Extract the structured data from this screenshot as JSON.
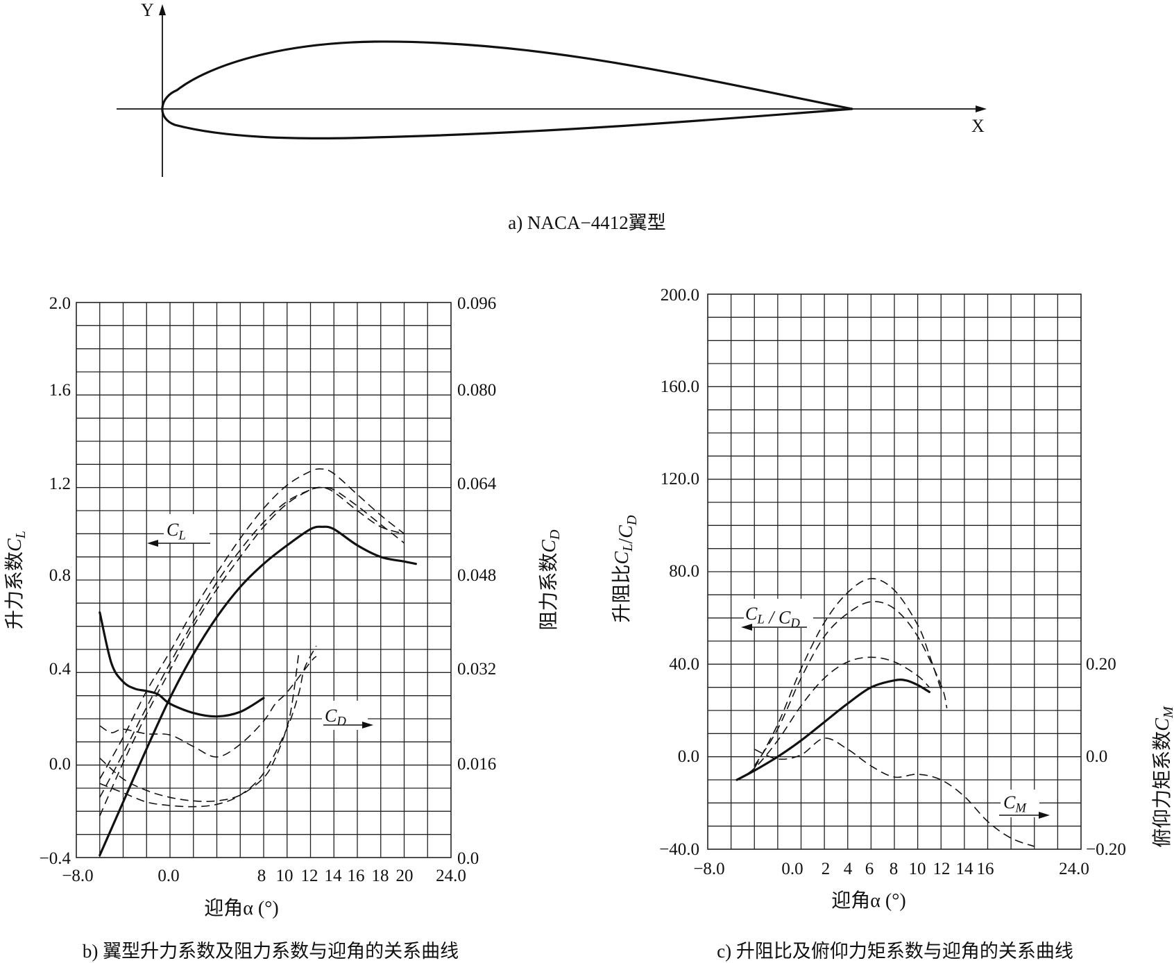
{
  "airfoil_panel": {
    "y_axis_label": "Y",
    "x_axis_label": "X",
    "caption": "a) NACA−4412翼型"
  },
  "chart_data": [
    {
      "type": "line",
      "caption": "b) 翼型升力系数及阻力系数与迎角的关系曲线",
      "xlabel": "迎角α (°)",
      "ylabel_left": "升力系数C_L",
      "ylabel_right": "阻力系数C_D",
      "xlim": [
        -8,
        24
      ],
      "ylim_left": [
        -0.4,
        2.0
      ],
      "ylim_right": [
        0.0,
        0.096
      ],
      "x_ticks": [
        "−8.0",
        "0.0",
        "8",
        "10",
        "12",
        "14",
        "16",
        "18",
        "20",
        "24.0"
      ],
      "y_ticks_left": [
        "2.0",
        "1.6",
        "1.2",
        "0.8",
        "0.4",
        "0.0",
        "−0.4"
      ],
      "y_ticks_right": [
        "0.096",
        "0.080",
        "0.064",
        "0.048",
        "0.032",
        "0.016",
        "0.0"
      ],
      "legend_labels": {
        "cl": "C_L",
        "cd": "C_D"
      },
      "grid": true,
      "series": [
        {
          "axis": "left",
          "style": "solid",
          "points": [
            [
              -6,
              -0.39
            ],
            [
              -4,
              -0.16
            ],
            [
              -2,
              0.07
            ],
            [
              0,
              0.29
            ],
            [
              2,
              0.48
            ],
            [
              4,
              0.64
            ],
            [
              6,
              0.77
            ],
            [
              8,
              0.87
            ],
            [
              10,
              0.95
            ],
            [
              12,
              1.02
            ],
            [
              13,
              1.03
            ],
            [
              14,
              1.02
            ],
            [
              16,
              0.95
            ],
            [
              18,
              0.9
            ],
            [
              20,
              0.88
            ],
            [
              21,
              0.87
            ]
          ]
        },
        {
          "axis": "left",
          "style": "dashed",
          "points": [
            [
              -6,
              -0.22
            ],
            [
              -4,
              0.01
            ],
            [
              -2,
              0.22
            ],
            [
              0,
              0.41
            ],
            [
              2,
              0.6
            ],
            [
              4,
              0.76
            ],
            [
              6,
              0.9
            ],
            [
              8,
              1.03
            ],
            [
              10,
              1.13
            ],
            [
              12,
              1.19
            ],
            [
              13,
              1.2
            ],
            [
              14,
              1.18
            ],
            [
              16,
              1.1
            ],
            [
              18,
              1.03
            ],
            [
              20,
              1.0
            ]
          ]
        },
        {
          "axis": "left",
          "style": "dashed",
          "points": [
            [
              -6,
              -0.14
            ],
            [
              -4,
              0.05
            ],
            [
              -2,
              0.25
            ],
            [
              0,
              0.44
            ],
            [
              2,
              0.62
            ],
            [
              4,
              0.79
            ],
            [
              6,
              0.93
            ],
            [
              8,
              1.05
            ],
            [
              10,
              1.14
            ],
            [
              12,
              1.19
            ],
            [
              13,
              1.2
            ],
            [
              14,
              1.19
            ],
            [
              16,
              1.12
            ],
            [
              18,
              1.04
            ],
            [
              20,
              0.96
            ]
          ]
        },
        {
          "axis": "left",
          "style": "dashed",
          "points": [
            [
              -6,
              -0.06
            ],
            [
              -4,
              0.12
            ],
            [
              -2,
              0.32
            ],
            [
              0,
              0.49
            ],
            [
              2,
              0.67
            ],
            [
              4,
              0.83
            ],
            [
              6,
              0.98
            ],
            [
              8,
              1.11
            ],
            [
              10,
              1.21
            ],
            [
              12,
              1.27
            ],
            [
              13,
              1.28
            ],
            [
              14,
              1.26
            ],
            [
              16,
              1.17
            ],
            [
              18,
              1.08
            ],
            [
              20,
              1.0
            ]
          ]
        },
        {
          "axis": "right",
          "style": "solid",
          "points": [
            [
              -6,
              0.0424
            ],
            [
              -5,
              0.0336
            ],
            [
              -4,
              0.0304
            ],
            [
              -3,
              0.0292
            ],
            [
              -2,
              0.0288
            ],
            [
              -1,
              0.0282
            ],
            [
              0,
              0.0266
            ],
            [
              2,
              0.025
            ],
            [
              4,
              0.0244
            ],
            [
              6,
              0.0252
            ],
            [
              8,
              0.0276
            ]
          ]
        },
        {
          "axis": "right",
          "style": "dashed",
          "points": [
            [
              -6,
              0.0172
            ],
            [
              -4,
              0.0136
            ],
            [
              -2,
              0.0116
            ],
            [
              0,
              0.0104
            ],
            [
              2,
              0.0098
            ],
            [
              4,
              0.0098
            ],
            [
              6,
              0.0108
            ],
            [
              8,
              0.0138
            ],
            [
              9,
              0.0172
            ],
            [
              10,
              0.0226
            ],
            [
              10.5,
              0.0276
            ],
            [
              11,
              0.0354
            ]
          ]
        },
        {
          "axis": "right",
          "style": "dashed",
          "points": [
            [
              -6,
              0.0128
            ],
            [
              -4,
              0.0112
            ],
            [
              -2,
              0.0096
            ],
            [
              0,
              0.009
            ],
            [
              2,
              0.0088
            ],
            [
              4,
              0.0092
            ],
            [
              6,
              0.0108
            ],
            [
              8,
              0.0146
            ],
            [
              10,
              0.0224
            ],
            [
              11,
              0.0284
            ],
            [
              11.5,
              0.0328
            ],
            [
              12.5,
              0.0366
            ]
          ]
        },
        {
          "axis": "right",
          "style": "dashed",
          "points": [
            [
              -6,
              0.0228
            ],
            [
              -5,
              0.0216
            ],
            [
              -4,
              0.0222
            ],
            [
              -2,
              0.0214
            ],
            [
              0,
              0.0212
            ],
            [
              2,
              0.0192
            ],
            [
              4,
              0.0174
            ],
            [
              6,
              0.0196
            ],
            [
              8,
              0.0236
            ],
            [
              9,
              0.0266
            ],
            [
              10,
              0.0286
            ],
            [
              12,
              0.0338
            ],
            [
              12.5,
              0.0348
            ]
          ]
        }
      ]
    },
    {
      "type": "line",
      "caption": "c) 升阻比及俯仰力矩系数与迎角的关系曲线",
      "xlabel": "迎角α (°)",
      "ylabel_left": "升阻比C_L/C_D",
      "ylabel_right": "俯仰力矩系数C_M",
      "xlim": [
        -8,
        24
      ],
      "ylim_left": [
        -40,
        200
      ],
      "ylim_right": [
        -0.2,
        0.2
      ],
      "x_ticks": [
        "−8.0",
        "0.0",
        "2",
        "4",
        "6",
        "8",
        "10",
        "12",
        "14",
        "16",
        "24.0"
      ],
      "y_ticks_left": [
        "200.0",
        "160.0",
        "120.0",
        "80.0",
        "40.0",
        "0.0",
        "−40.0"
      ],
      "y_ticks_right": [
        "0.20",
        "0.0",
        "−0.20"
      ],
      "legend_labels": {
        "ld": "C_L / C_D",
        "cm": "C_M"
      },
      "grid": true,
      "series": [
        {
          "axis": "left",
          "style": "solid",
          "points": [
            [
              -5.5,
              -10
            ],
            [
              -4,
              -6
            ],
            [
              -2,
              0
            ],
            [
              0,
              7
            ],
            [
              2,
              15
            ],
            [
              4,
              23
            ],
            [
              6,
              30
            ],
            [
              8,
              33
            ],
            [
              9,
              33
            ],
            [
              10,
              31
            ],
            [
              11,
              28
            ]
          ]
        },
        {
          "axis": "left",
          "style": "dashed",
          "points": [
            [
              -5.5,
              -10
            ],
            [
              -4,
              -5
            ],
            [
              -2,
              7
            ],
            [
              0,
              22
            ],
            [
              2,
              34
            ],
            [
              4,
              41
            ],
            [
              6,
              43
            ],
            [
              8,
              41
            ],
            [
              10,
              35
            ],
            [
              11,
              30
            ]
          ]
        },
        {
          "axis": "left",
          "style": "dashed",
          "points": [
            [
              -4,
              -4
            ],
            [
              -2,
              12
            ],
            [
              0,
              34
            ],
            [
              2,
              52
            ],
            [
              4,
              62
            ],
            [
              6,
              67
            ],
            [
              8,
              64
            ],
            [
              10,
              52
            ],
            [
              12,
              31
            ],
            [
              12.5,
              21
            ]
          ]
        },
        {
          "axis": "left",
          "style": "dashed",
          "points": [
            [
              -4,
              -5
            ],
            [
              -2,
              14
            ],
            [
              0,
              38
            ],
            [
              2,
              58
            ],
            [
              4,
              71
            ],
            [
              6,
              77
            ],
            [
              8,
              72
            ],
            [
              10,
              57
            ],
            [
              11,
              44
            ],
            [
              12,
              29
            ]
          ]
        },
        {
          "axis": "right",
          "style": "dashed",
          "points": [
            [
              -4,
              -0.128
            ],
            [
              -2,
              -0.135
            ],
            [
              0,
              -0.132
            ],
            [
              2,
              -0.12
            ],
            [
              4,
              -0.128
            ],
            [
              6,
              -0.14
            ],
            [
              8,
              -0.148
            ],
            [
              10,
              -0.146
            ],
            [
              12,
              -0.15
            ],
            [
              14,
              -0.162
            ],
            [
              16,
              -0.18
            ],
            [
              18,
              -0.192
            ],
            [
              20,
              -0.198
            ]
          ]
        }
      ]
    }
  ]
}
